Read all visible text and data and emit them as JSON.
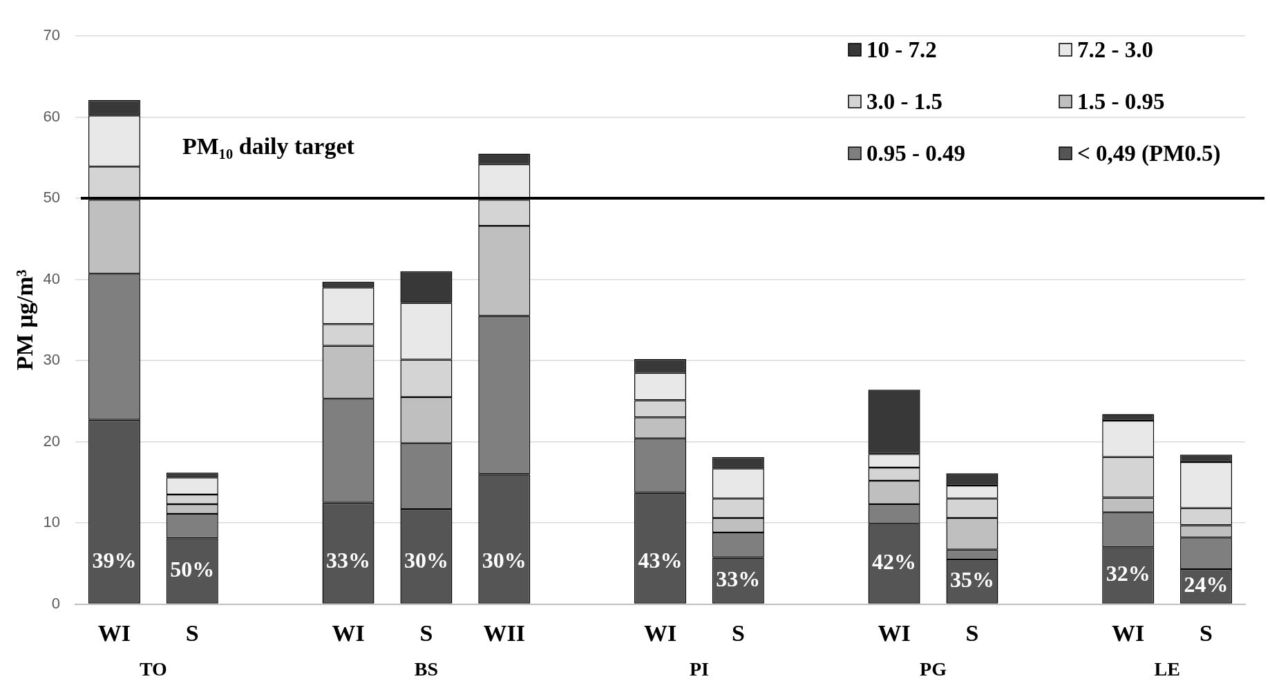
{
  "chart_data": {
    "type": "bar",
    "stacked": true,
    "categories": [
      "WI",
      "S",
      null,
      "WI",
      "S",
      "WII",
      null,
      "WI",
      "S",
      null,
      "WI",
      "S",
      null,
      "WI",
      "S"
    ],
    "ylabel": "PM µg/m³",
    "ylim": [
      0,
      70
    ],
    "yticks": [
      0,
      10,
      20,
      30,
      40,
      50,
      60,
      70
    ],
    "grid": "y",
    "legend": "top right",
    "ref_lines": [
      {
        "axis": "y",
        "value": 50,
        "label": "PM₁₀ daily target",
        "color": "#000000"
      }
    ],
    "annotations": [
      "TO",
      "BS",
      "PI",
      "PG",
      "LE",
      "39%",
      "50%",
      "33%",
      "30%",
      "30%",
      "43%",
      "33%",
      "42%",
      "35%",
      "32%",
      "24%"
    ],
    "series": [
      {
        "name": "< 0,49 (PM0.5)",
        "color": "#555555",
        "values": [
          22.7,
          8.1,
          null,
          12.5,
          11.7,
          16.0,
          null,
          13.7,
          5.7,
          null,
          9.9,
          5.5,
          null,
          7.0,
          4.3
        ]
      },
      {
        "name": "0.95 - 0.49",
        "color": "#7f7f7f",
        "values": [
          18.0,
          3.0,
          null,
          12.8,
          8.1,
          19.5,
          null,
          6.7,
          3.1,
          null,
          2.4,
          1.2,
          null,
          4.3,
          3.9
        ]
      },
      {
        "name": "1.5 - 0.95",
        "color": "#bfbfbf",
        "values": [
          9.1,
          1.2,
          null,
          6.5,
          5.7,
          11.1,
          null,
          2.6,
          1.8,
          null,
          2.9,
          3.9,
          null,
          1.8,
          1.5
        ]
      },
      {
        "name": "3.0 - 1.5",
        "color": "#d4d4d4",
        "values": [
          4.1,
          1.2,
          null,
          2.7,
          4.6,
          3.2,
          null,
          2.1,
          2.4,
          null,
          1.6,
          2.4,
          null,
          5.0,
          2.1
        ]
      },
      {
        "name": "7.2 - 3.0",
        "color": "#e8e8e8",
        "values": [
          6.3,
          2.1,
          null,
          4.5,
          7.0,
          4.4,
          null,
          3.4,
          3.7,
          null,
          1.7,
          1.6,
          null,
          4.5,
          5.7
        ]
      },
      {
        "name": "10 - 7.2",
        "color": "#383838",
        "values": [
          1.9,
          0.6,
          null,
          0.7,
          3.9,
          1.3,
          null,
          1.7,
          1.4,
          null,
          7.9,
          1.5,
          null,
          0.8,
          0.9
        ]
      }
    ]
  }
}
